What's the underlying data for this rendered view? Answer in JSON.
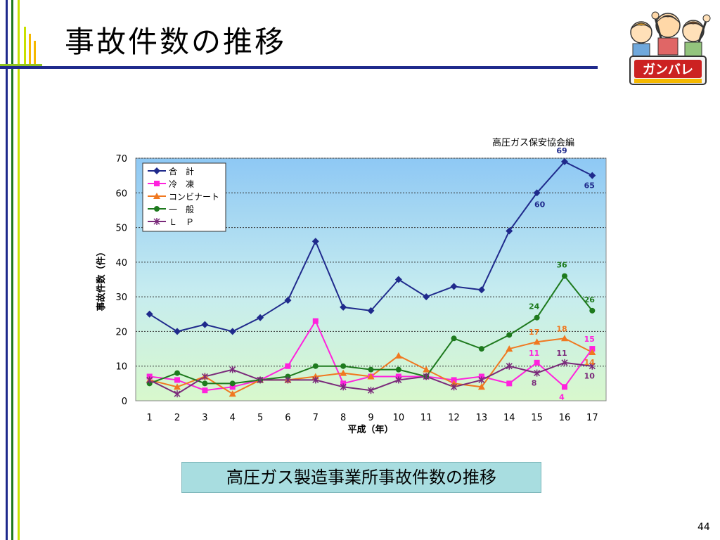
{
  "slide": {
    "title": "事故件数の推移",
    "credit": "高圧ガス保安協会編",
    "caption": "高圧ガス製造事業所事故件数の推移",
    "page_number": "44",
    "mascot_sign": "ガンバレ"
  },
  "colors": {
    "title_rule": "#1f2a8c",
    "accent_green": "#8fc31f",
    "caption_bg": "#a8dde0"
  },
  "chart_data": {
    "type": "line",
    "xlabel": "平成（年）",
    "ylabel": "事故件数（件）",
    "ylim": [
      0,
      70
    ],
    "yticks": [
      0,
      10,
      20,
      30,
      40,
      50,
      60,
      70
    ],
    "grid": "horizontal dotted",
    "legend_position": "top-left",
    "categories": [
      "1",
      "2",
      "3",
      "4",
      "5",
      "6",
      "7",
      "8",
      "9",
      "10",
      "11",
      "12",
      "13",
      "14",
      "15",
      "16",
      "17"
    ],
    "series": [
      {
        "name": "合　計",
        "color": "#1f2a8c",
        "marker": "diamond",
        "values": [
          25,
          20,
          22,
          20,
          24,
          29,
          46,
          27,
          26,
          35,
          30,
          33,
          32,
          49,
          60,
          69,
          65
        ]
      },
      {
        "name": "冷　凍",
        "color": "#ff22dd",
        "marker": "square",
        "values": [
          7,
          6,
          3,
          4,
          6,
          10,
          23,
          5,
          7,
          7,
          7,
          6,
          7,
          5,
          11,
          4,
          15
        ]
      },
      {
        "name": "コンビナート",
        "color": "#f07820",
        "marker": "triangle",
        "values": [
          6,
          4,
          7,
          2,
          6,
          6,
          7,
          8,
          7,
          13,
          9,
          5,
          4,
          15,
          17,
          18,
          14
        ]
      },
      {
        "name": "一　般",
        "color": "#1e7a1e",
        "marker": "circle",
        "values": [
          5,
          8,
          5,
          5,
          6,
          7,
          10,
          10,
          9,
          9,
          7,
          18,
          15,
          19,
          24,
          36,
          26
        ]
      },
      {
        "name": "Ｌ　Ｐ",
        "color": "#7a2a7a",
        "marker": "star",
        "values": [
          6,
          2,
          7,
          9,
          6,
          6,
          6,
          4,
          3,
          6,
          7,
          4,
          6,
          10,
          8,
          11,
          10
        ]
      }
    ],
    "data_labels": [
      {
        "series": "合　計",
        "x": "15",
        "text": "60"
      },
      {
        "series": "合　計",
        "x": "16",
        "text": "69"
      },
      {
        "series": "合　計",
        "x": "17",
        "text": "65"
      },
      {
        "series": "一　般",
        "x": "15",
        "text": "24"
      },
      {
        "series": "一　般",
        "x": "16",
        "text": "36"
      },
      {
        "series": "一　般",
        "x": "17",
        "text": "26"
      },
      {
        "series": "コンビナート",
        "x": "15",
        "text": "17"
      },
      {
        "series": "コンビナート",
        "x": "16",
        "text": "18"
      },
      {
        "series": "コンビナート",
        "x": "17",
        "text": "14"
      },
      {
        "series": "冷　凍",
        "x": "15",
        "text": "11"
      },
      {
        "series": "冷　凍",
        "x": "16",
        "text": "4"
      },
      {
        "series": "冷　凍",
        "x": "17",
        "text": "15"
      },
      {
        "series": "Ｌ　Ｐ",
        "x": "15",
        "text": "8"
      },
      {
        "series": "Ｌ　Ｐ",
        "x": "16",
        "text": "11"
      },
      {
        "series": "Ｌ　Ｐ",
        "x": "17",
        "text": "10"
      }
    ]
  }
}
